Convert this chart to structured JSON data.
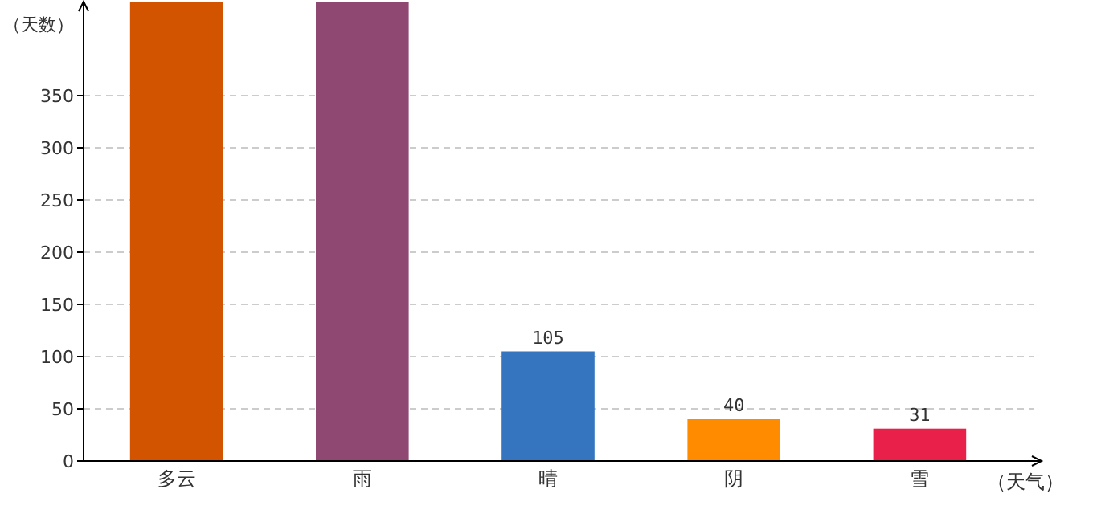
{
  "chart_data": {
    "type": "bar",
    "xlabel": "（天气）",
    "ylabel": "（天数）",
    "categories": [
      "多云",
      "雨",
      "晴",
      "阴",
      "雪"
    ],
    "values": [
      440,
      440,
      105,
      40,
      31
    ],
    "colors": [
      "#d35400",
      "#8e4872",
      "#3575c0",
      "#ff8c00",
      "#e8204a"
    ],
    "value_labels": [
      null,
      null,
      "105",
      "40",
      "31"
    ],
    "ylim": [
      0,
      440
    ],
    "yticks": [
      0,
      50,
      100,
      150,
      200,
      250,
      300,
      350
    ],
    "grid": "y"
  }
}
